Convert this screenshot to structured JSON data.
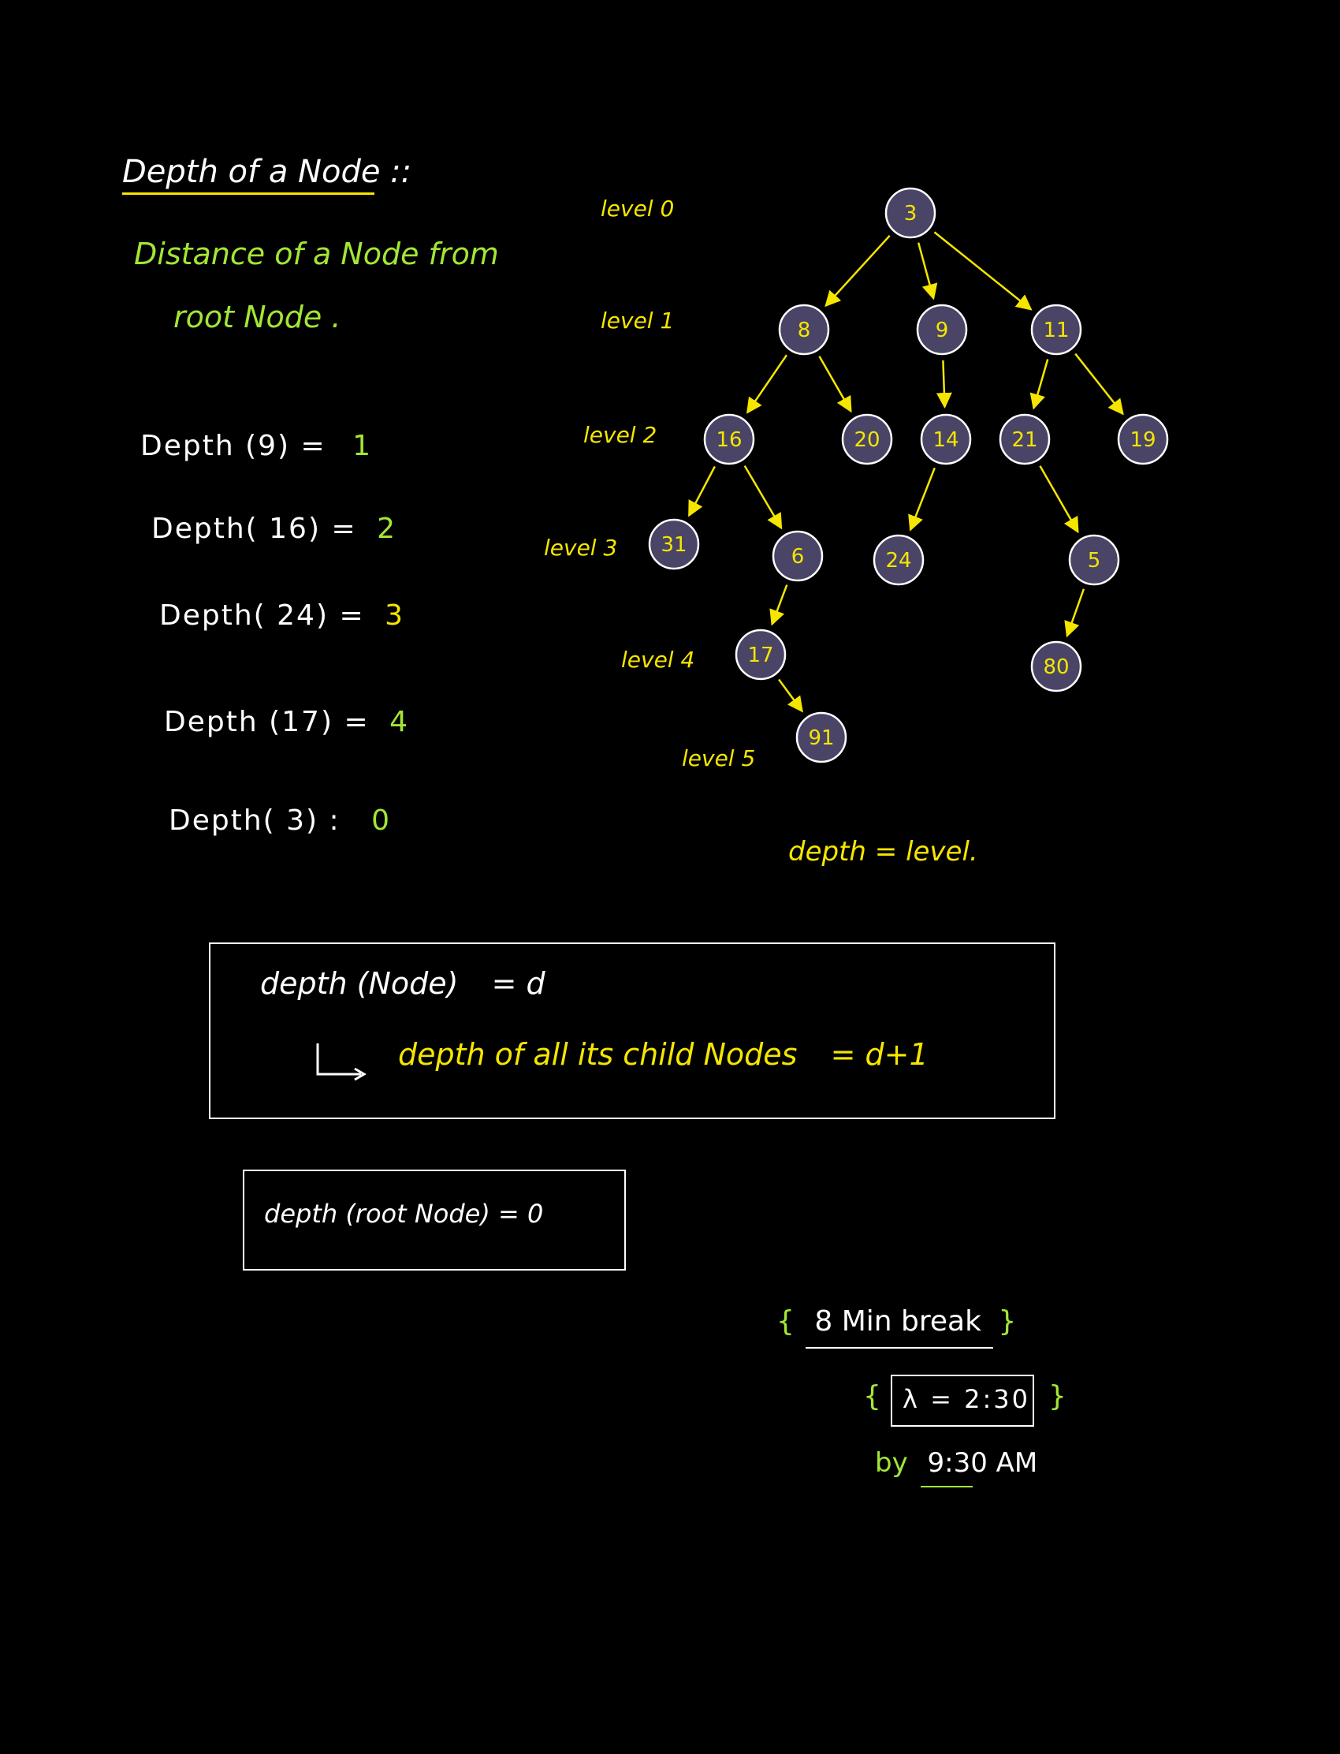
{
  "title": "Depth of a Node ::",
  "definition": {
    "line1": "Distance of a Node from",
    "line2": "root Node ."
  },
  "depth_examples": [
    {
      "expr": "Depth (9) =",
      "value": "1"
    },
    {
      "expr": "Depth( 16) =",
      "value": "2"
    },
    {
      "expr": "Depth( 24) =",
      "value": "3"
    },
    {
      "expr": "Depth (17) =",
      "value": "4"
    },
    {
      "expr": "Depth( 3) :",
      "value": "0"
    }
  ],
  "levels": [
    "level 0",
    "level 1",
    "level 2",
    "level 3",
    "level 4",
    "level 5"
  ],
  "tree": {
    "nodes": [
      "3",
      "8",
      "9",
      "11",
      "16",
      "20",
      "14",
      "21",
      "19",
      "31",
      "6",
      "24",
      "5",
      "17",
      "80",
      "91"
    ],
    "edges": [
      [
        "3",
        "8"
      ],
      [
        "3",
        "9"
      ],
      [
        "3",
        "11"
      ],
      [
        "8",
        "16"
      ],
      [
        "8",
        "20"
      ],
      [
        "9",
        "14"
      ],
      [
        "11",
        "21"
      ],
      [
        "11",
        "19"
      ],
      [
        "16",
        "31"
      ],
      [
        "16",
        "6"
      ],
      [
        "14",
        "24"
      ],
      [
        "21",
        "5"
      ],
      [
        "6",
        "17"
      ],
      [
        "5",
        "80"
      ],
      [
        "17",
        "91"
      ]
    ]
  },
  "note_depth_level": "depth = level.",
  "box1": {
    "line1_a": "depth (Node)",
    "line1_b": "= d",
    "line2_a": "depth of all its child Nodes",
    "line2_b": "= d+1"
  },
  "box2": {
    "text": "depth (root Node) = 0"
  },
  "break": {
    "open": "{",
    "text": "8 Min break",
    "close": "}"
  },
  "time": {
    "open": "{",
    "text": "λ = 2:30",
    "close": "}"
  },
  "by": {
    "prefix": "by",
    "time": "9:30 AM"
  },
  "colors": {
    "background": "#000000",
    "node_fill": "#4a4466",
    "edge": "#f5e600",
    "accent_green": "#a3e635",
    "accent_yellow": "#f5e600"
  }
}
